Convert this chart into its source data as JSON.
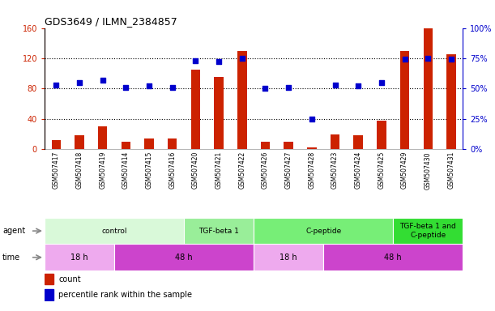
{
  "title": "GDS3649 / ILMN_2384857",
  "samples": [
    "GSM507417",
    "GSM507418",
    "GSM507419",
    "GSM507414",
    "GSM507415",
    "GSM507416",
    "GSM507420",
    "GSM507421",
    "GSM507422",
    "GSM507426",
    "GSM507427",
    "GSM507428",
    "GSM507423",
    "GSM507424",
    "GSM507425",
    "GSM507429",
    "GSM507430",
    "GSM507431"
  ],
  "counts": [
    12,
    18,
    30,
    10,
    14,
    14,
    105,
    95,
    130,
    10,
    10,
    2,
    20,
    18,
    38,
    130,
    160,
    125
  ],
  "percentile_ranks": [
    53,
    55,
    57,
    51,
    52,
    51,
    73,
    72,
    75,
    50,
    51,
    25,
    53,
    52,
    55,
    74,
    75,
    74
  ],
  "bar_color": "#cc2200",
  "dot_color": "#0000cc",
  "ylim_left": [
    0,
    160
  ],
  "ylim_right": [
    0,
    100
  ],
  "yticks_left": [
    0,
    40,
    80,
    120,
    160
  ],
  "ytick_labels_left": [
    "0",
    "40",
    "80",
    "120",
    "160"
  ],
  "yticks_right": [
    0,
    25,
    50,
    75,
    100
  ],
  "ytick_labels_right": [
    "0%",
    "25%",
    "50%",
    "75%",
    "100%"
  ],
  "gridlines_at": [
    40,
    80,
    120
  ],
  "agent_groups": [
    {
      "label": "control",
      "start": 0,
      "end": 6,
      "color": "#d9f9d9"
    },
    {
      "label": "TGF-beta 1",
      "start": 6,
      "end": 9,
      "color": "#99ee99"
    },
    {
      "label": "C-peptide",
      "start": 9,
      "end": 15,
      "color": "#77ee77"
    },
    {
      "label": "TGF-beta 1 and\nC-peptide",
      "start": 15,
      "end": 18,
      "color": "#33dd33"
    }
  ],
  "time_groups": [
    {
      "label": "18 h",
      "start": 0,
      "end": 3,
      "color": "#eeaaee"
    },
    {
      "label": "48 h",
      "start": 3,
      "end": 9,
      "color": "#cc44cc"
    },
    {
      "label": "18 h",
      "start": 9,
      "end": 12,
      "color": "#eeaaee"
    },
    {
      "label": "48 h",
      "start": 12,
      "end": 18,
      "color": "#cc44cc"
    }
  ],
  "legend_count_color": "#cc2200",
  "legend_pct_color": "#0000cc",
  "bg_color": "#ffffff",
  "left_tick_color": "#cc2200",
  "right_tick_color": "#0000cc",
  "bar_width": 0.4,
  "dot_size": 16,
  "title_fontsize": 9,
  "tick_fontsize": 7,
  "label_fontsize": 7,
  "row_label_fontsize": 7,
  "sample_fontsize": 5.5,
  "agent_fontsize": 6.5,
  "time_fontsize": 7
}
